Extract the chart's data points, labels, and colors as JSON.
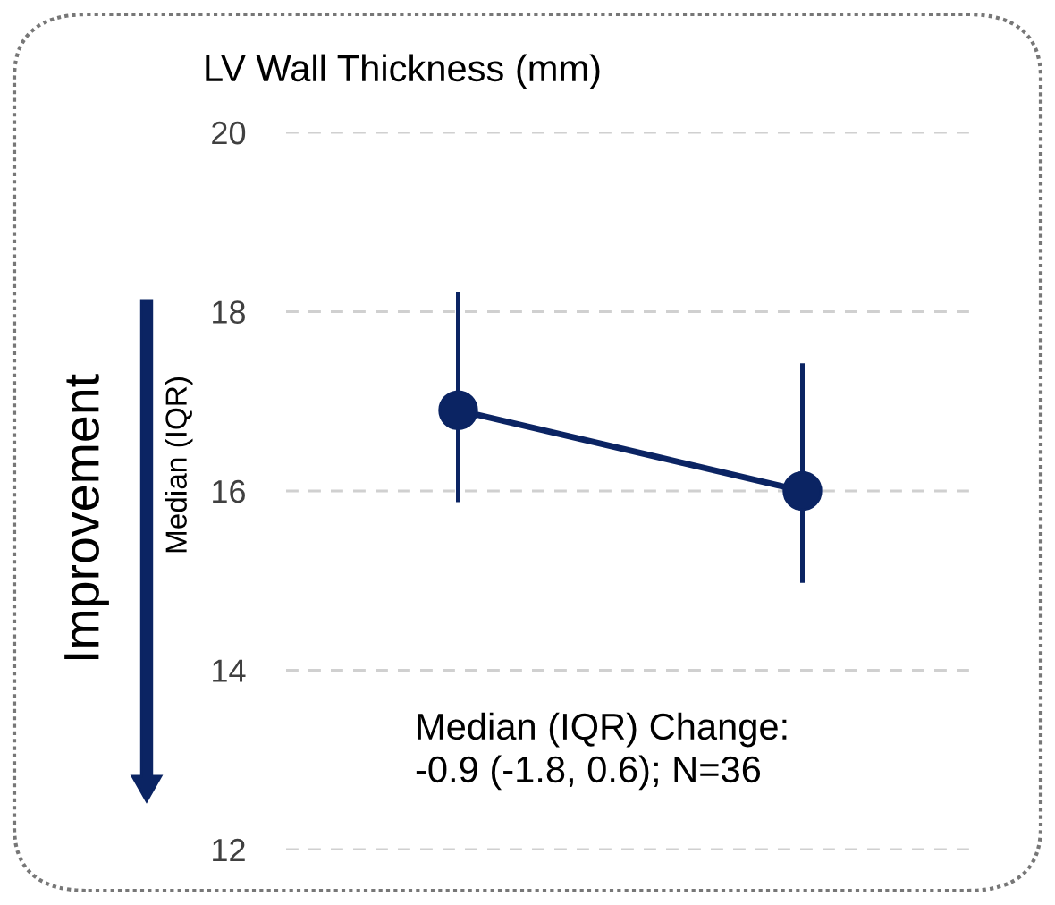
{
  "chart_data": {
    "type": "line",
    "title": "LV Wall Thickness (mm)",
    "ylabel": "Median (IQR)",
    "categories": [
      null,
      null
    ],
    "series": [
      {
        "color": "#0b2463",
        "values": [
          16.9,
          16.0
        ],
        "errors": [
          [
            15.9,
            18.2
          ],
          [
            15.0,
            17.4
          ]
        ]
      }
    ],
    "ylim": [
      12,
      20
    ],
    "yticks": [
      12,
      14,
      16,
      18,
      20
    ],
    "grid": "y",
    "marker": "circle",
    "line_style": "solid",
    "annotations": [
      "Improvement",
      "Median (IQR) Change:\n-0.9 (-1.8, 0.6); N=36"
    ]
  }
}
